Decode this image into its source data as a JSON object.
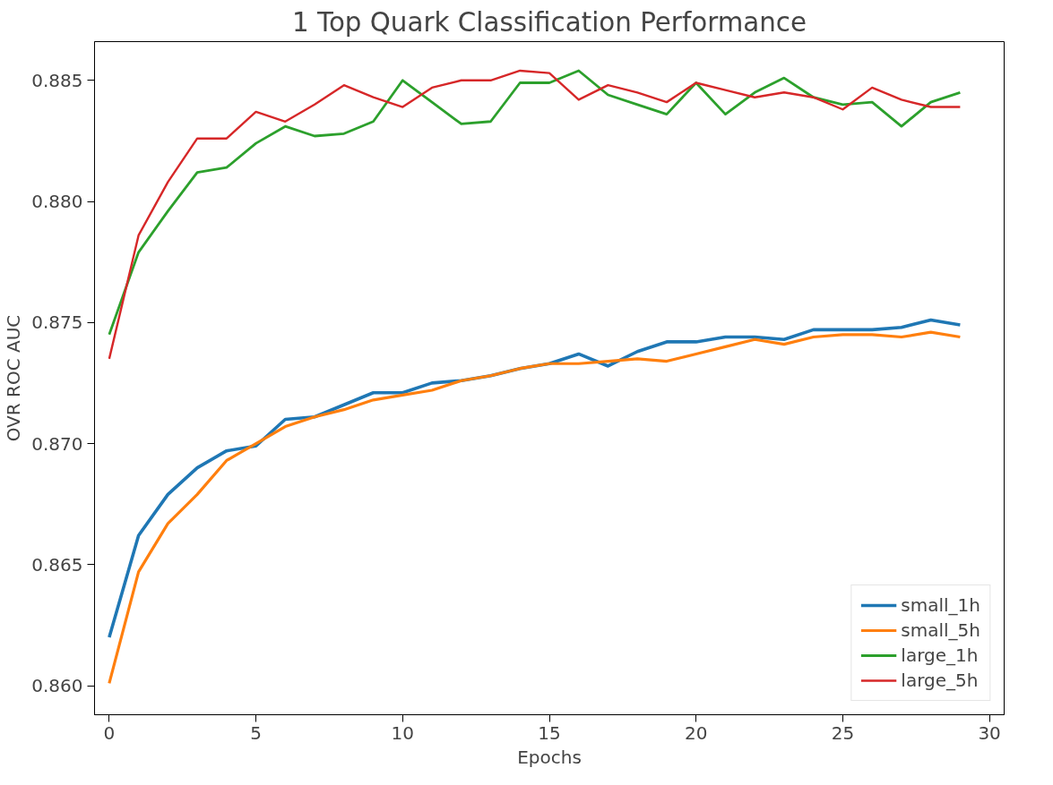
{
  "chart_data": {
    "type": "line",
    "title": "1 Top Quark Classification Performance",
    "xlabel": "Epochs",
    "ylabel": "OVR ROC AUC",
    "x": [
      0,
      1,
      2,
      3,
      4,
      5,
      6,
      7,
      8,
      9,
      10,
      11,
      12,
      13,
      14,
      15,
      16,
      17,
      18,
      19,
      20,
      21,
      22,
      23,
      24,
      25,
      26,
      27,
      28,
      29
    ],
    "series": [
      {
        "name": "small_1h",
        "color": "#1f77b4",
        "values": [
          0.862,
          0.8662,
          0.8679,
          0.869,
          0.8697,
          0.8699,
          0.871,
          0.8711,
          0.8716,
          0.8721,
          0.8721,
          0.8725,
          0.8726,
          0.8728,
          0.8731,
          0.8733,
          0.8737,
          0.8732,
          0.8738,
          0.8742,
          0.8742,
          0.8744,
          0.8744,
          0.8743,
          0.8747,
          0.8747,
          0.8747,
          0.8748,
          0.8751,
          0.8749
        ]
      },
      {
        "name": "small_5h",
        "color": "#ff7f0e",
        "values": [
          0.8601,
          0.8647,
          0.8667,
          0.8679,
          0.8693,
          0.87,
          0.8707,
          0.8711,
          0.8714,
          0.8718,
          0.872,
          0.8722,
          0.8726,
          0.8728,
          0.8731,
          0.8733,
          0.8733,
          0.8734,
          0.8735,
          0.8734,
          0.8737,
          0.874,
          0.8743,
          0.8741,
          0.8744,
          0.8745,
          0.8745,
          0.8744,
          0.8746,
          0.8744
        ]
      },
      {
        "name": "large_1h",
        "color": "#2ca02c",
        "values": [
          0.8745,
          0.8779,
          0.8796,
          0.8812,
          0.8814,
          0.8824,
          0.8831,
          0.8827,
          0.8828,
          0.8833,
          0.885,
          0.8841,
          0.8832,
          0.8833,
          0.8849,
          0.8849,
          0.8854,
          0.8844,
          0.884,
          0.8836,
          0.8849,
          0.8836,
          0.8845,
          0.8851,
          0.8843,
          0.884,
          0.8841,
          0.8831,
          0.8841,
          0.8845
        ]
      },
      {
        "name": "large_5h",
        "color": "#d62728",
        "values": [
          0.8735,
          0.8786,
          0.8808,
          0.8826,
          0.8826,
          0.8837,
          0.8833,
          0.884,
          0.8848,
          0.8843,
          0.8839,
          0.8847,
          0.885,
          0.885,
          0.8854,
          0.8853,
          0.8842,
          0.8848,
          0.8845,
          0.8841,
          0.8849,
          0.8846,
          0.8843,
          0.8845,
          0.8843,
          0.8838,
          0.8847,
          0.8842,
          0.8839,
          0.8839
        ]
      }
    ],
    "xlim": [
      -0.5,
      30.5
    ],
    "ylim": [
      0.8588,
      0.8866
    ],
    "xticks": [
      0,
      5,
      10,
      15,
      20,
      25,
      30
    ],
    "yticks": [
      {
        "value": 0.86,
        "label": "0.860"
      },
      {
        "value": 0.865,
        "label": "0.865"
      },
      {
        "value": 0.87,
        "label": "0.870"
      },
      {
        "value": 0.875,
        "label": "0.875"
      },
      {
        "value": 0.88,
        "label": "0.880"
      },
      {
        "value": 0.885,
        "label": "0.885"
      }
    ],
    "legend": "bottom right",
    "grid": false,
    "marker": "none",
    "line_style": "solid"
  }
}
